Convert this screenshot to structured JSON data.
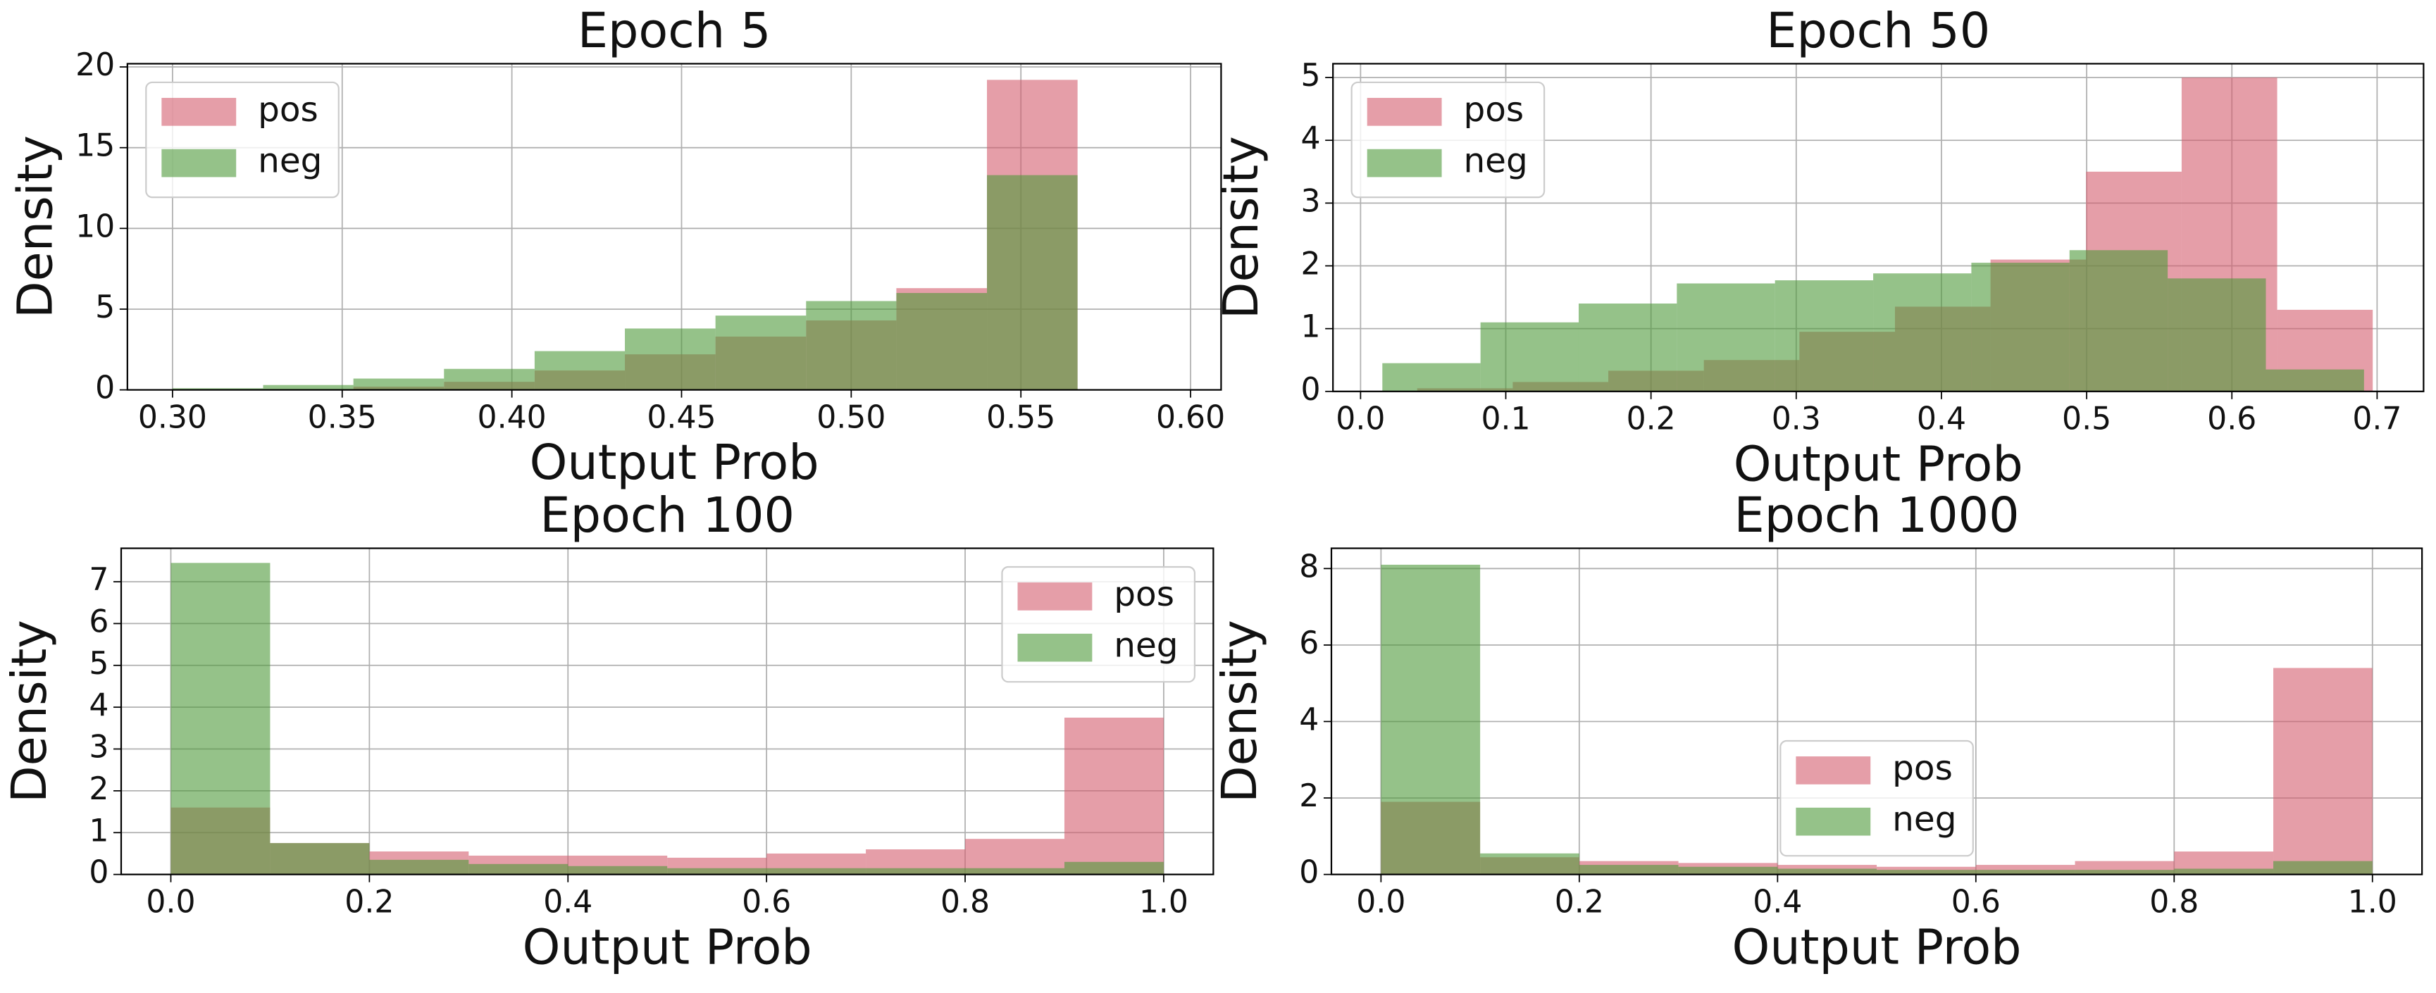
{
  "chart_data": [
    {
      "type": "histogram",
      "title": "Epoch 5",
      "xlabel": "Output Prob",
      "ylabel": "Density",
      "xlim": [
        0.2867,
        0.609
      ],
      "ylim": [
        0,
        20.2
      ],
      "xticks": [
        {
          "value": 0.3,
          "label": "0.30"
        },
        {
          "value": 0.35,
          "label": "0.35"
        },
        {
          "value": 0.4,
          "label": "0.40"
        },
        {
          "value": 0.45,
          "label": "0.45"
        },
        {
          "value": 0.5,
          "label": "0.50"
        },
        {
          "value": 0.55,
          "label": "0.55"
        },
        {
          "value": 0.6,
          "label": "0.60"
        }
      ],
      "yticks": [
        0,
        5,
        10,
        15,
        20
      ],
      "grid": true,
      "legend": "upper left",
      "series": [
        {
          "name": "pos",
          "color": "#d35d6e",
          "bins": [
            0.3,
            0.3267,
            0.3533,
            0.38,
            0.4067,
            0.4333,
            0.46,
            0.4867,
            0.5133,
            0.54,
            0.5667
          ],
          "values": [
            0,
            0.05,
            0.2,
            0.5,
            1.2,
            2.2,
            3.3,
            4.3,
            6.3,
            19.2
          ]
        },
        {
          "name": "neg",
          "color": "#4f9a3a",
          "bins": [
            0.3,
            0.3267,
            0.3533,
            0.38,
            0.4067,
            0.4333,
            0.46,
            0.4867,
            0.5133,
            0.54,
            0.5667
          ],
          "values": [
            0.1,
            0.3,
            0.7,
            1.3,
            2.4,
            3.8,
            4.6,
            5.5,
            6.0,
            13.3
          ]
        }
      ]
    },
    {
      "type": "histogram",
      "title": "Epoch 50",
      "xlabel": "Output Prob",
      "ylabel": "Density",
      "xlim": [
        -0.019,
        0.732
      ],
      "ylim": [
        0,
        5.22
      ],
      "xticks": [
        {
          "value": 0,
          "label": "0.0"
        },
        0.1,
        0.2,
        0.3,
        0.4,
        0.5,
        0.6,
        0.7
      ],
      "yticks": [
        0,
        1,
        2,
        3,
        4,
        5
      ],
      "grid": true,
      "legend": "upper left",
      "series": [
        {
          "name": "pos",
          "color": "#d35d6e",
          "bins": [
            0.039,
            0.1048,
            0.1706,
            0.2364,
            0.3022,
            0.368,
            0.4338,
            0.4996,
            0.5654,
            0.6312,
            0.697
          ],
          "values": [
            0.05,
            0.15,
            0.33,
            0.5,
            0.95,
            1.35,
            2.1,
            3.5,
            5.0,
            1.3
          ]
        },
        {
          "name": "neg",
          "color": "#4f9a3a",
          "bins": [
            0.015,
            0.0826,
            0.1502,
            0.2178,
            0.2854,
            0.353,
            0.4206,
            0.4882,
            0.5558,
            0.6234,
            0.691
          ],
          "values": [
            0.45,
            1.1,
            1.4,
            1.72,
            1.77,
            1.88,
            2.05,
            2.25,
            1.8,
            0.35
          ]
        }
      ]
    },
    {
      "type": "histogram",
      "title": "Epoch 100",
      "xlabel": "Output Prob",
      "ylabel": "Density",
      "xlim": [
        -0.05,
        1.05
      ],
      "ylim": [
        0,
        7.8
      ],
      "xticks": [
        {
          "value": 0,
          "label": "0.0"
        },
        0.2,
        0.4,
        0.6,
        0.8,
        {
          "value": 1,
          "label": "1.0"
        }
      ],
      "yticks": [
        0,
        1,
        2,
        3,
        4,
        5,
        6,
        7
      ],
      "grid": true,
      "legend": "upper right",
      "series": [
        {
          "name": "pos",
          "color": "#d35d6e",
          "bins": [
            0,
            0.1,
            0.2,
            0.3,
            0.4,
            0.5,
            0.6,
            0.7,
            0.8,
            0.9,
            1
          ],
          "values": [
            1.6,
            0.75,
            0.55,
            0.45,
            0.45,
            0.4,
            0.5,
            0.6,
            0.85,
            3.75
          ]
        },
        {
          "name": "neg",
          "color": "#4f9a3a",
          "bins": [
            0,
            0.1,
            0.2,
            0.3,
            0.4,
            0.5,
            0.6,
            0.7,
            0.8,
            0.9,
            1
          ],
          "values": [
            7.45,
            0.75,
            0.35,
            0.25,
            0.2,
            0.15,
            0.15,
            0.15,
            0.15,
            0.3
          ]
        }
      ]
    },
    {
      "type": "histogram",
      "title": "Epoch 1000",
      "xlabel": "Output Prob",
      "ylabel": "Density",
      "xlim": [
        -0.05,
        1.05
      ],
      "ylim": [
        0,
        8.53
      ],
      "xticks": [
        {
          "value": 0,
          "label": "0.0"
        },
        0.2,
        0.4,
        0.6,
        0.8,
        {
          "value": 1,
          "label": "1.0"
        }
      ],
      "yticks": [
        0,
        2,
        4,
        6,
        8
      ],
      "grid": true,
      "legend": "lower center",
      "series": [
        {
          "name": "pos",
          "color": "#d35d6e",
          "bins": [
            0,
            0.1,
            0.2,
            0.3,
            0.4,
            0.5,
            0.6,
            0.7,
            0.8,
            0.9,
            1
          ],
          "values": [
            1.9,
            0.45,
            0.35,
            0.3,
            0.25,
            0.2,
            0.25,
            0.35,
            0.6,
            5.4
          ]
        },
        {
          "name": "neg",
          "color": "#4f9a3a",
          "bins": [
            0,
            0.1,
            0.2,
            0.3,
            0.4,
            0.5,
            0.6,
            0.7,
            0.8,
            0.9,
            1
          ],
          "values": [
            8.1,
            0.55,
            0.25,
            0.2,
            0.15,
            0.12,
            0.12,
            0.12,
            0.15,
            0.35
          ]
        }
      ]
    }
  ]
}
